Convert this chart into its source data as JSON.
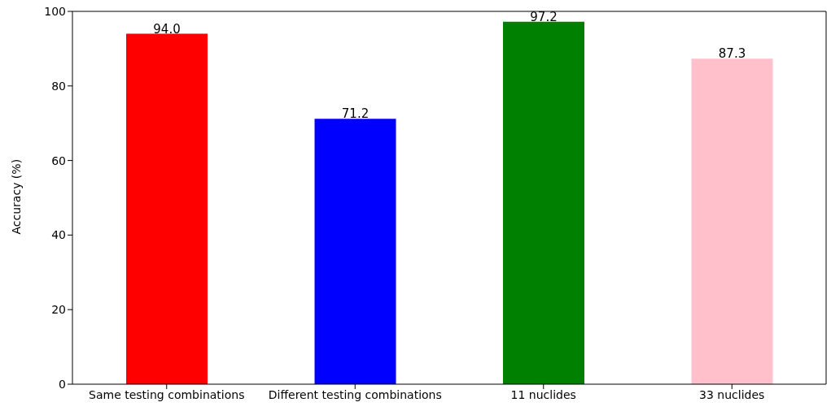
{
  "chart_data": {
    "type": "bar",
    "ylabel": "Accuracy (%)",
    "categories": [
      "Same testing combinations",
      "Different testing combinations",
      "11 nuclides",
      "33 nuclides"
    ],
    "values": [
      94.0,
      71.2,
      97.2,
      87.3
    ],
    "colors": [
      "#ff0000",
      "#0000ff",
      "#008000",
      "#ffc0cb"
    ],
    "value_labels": [
      "94.0",
      "71.2",
      "97.2",
      "87.3"
    ],
    "ylim": [
      0,
      100
    ],
    "yticks": [
      0,
      20,
      40,
      60,
      80,
      100
    ],
    "grid": false
  }
}
